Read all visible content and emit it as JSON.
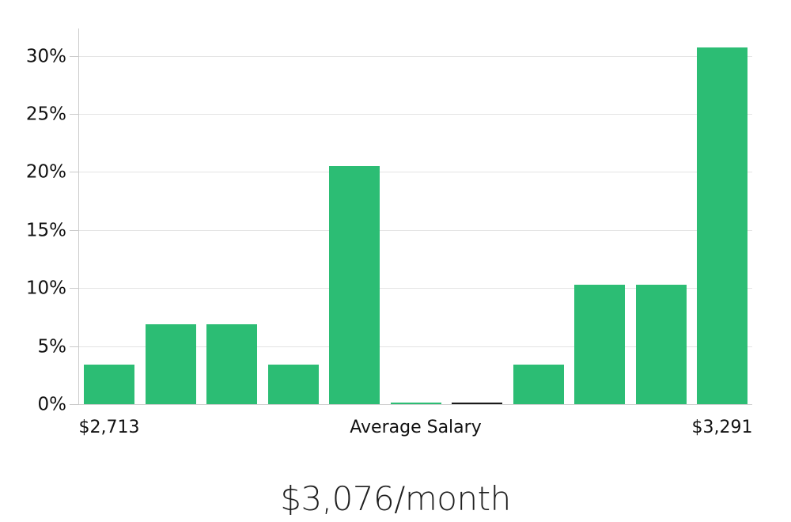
{
  "chart_data": {
    "type": "bar",
    "title": "$3,076/month",
    "xlabel": "",
    "ylabel": "",
    "ylim": [
      0,
      32.4
    ],
    "grid": true,
    "y_ticks": [
      {
        "value": 0,
        "label": "0%"
      },
      {
        "value": 5,
        "label": "5%"
      },
      {
        "value": 10,
        "label": "10%"
      },
      {
        "value": 15,
        "label": "15%"
      },
      {
        "value": 20,
        "label": "20%"
      },
      {
        "value": 25,
        "label": "25%"
      },
      {
        "value": 30,
        "label": "30%"
      }
    ],
    "bars": [
      {
        "value": 3.4,
        "kind": "bin"
      },
      {
        "value": 6.9,
        "kind": "bin"
      },
      {
        "value": 6.9,
        "kind": "bin"
      },
      {
        "value": 3.4,
        "kind": "bin"
      },
      {
        "value": 20.5,
        "kind": "bin"
      },
      {
        "value": 0.1,
        "kind": "bin"
      },
      {
        "value": 0.1,
        "kind": "average-marker"
      },
      {
        "value": 3.4,
        "kind": "bin"
      },
      {
        "value": 10.3,
        "kind": "bin"
      },
      {
        "value": 10.3,
        "kind": "bin"
      },
      {
        "value": 30.7,
        "kind": "bin"
      }
    ],
    "x_annotations": [
      {
        "text": "$2,713",
        "bar_index": 0
      },
      {
        "text": "Average Salary",
        "bar_index": 5
      },
      {
        "text": "$3,291",
        "bar_index": 10
      }
    ],
    "colors": {
      "bar": "#2cbd74",
      "average_marker": "#1a1a1a",
      "grid": "#e3e3e3",
      "baseline": "#cfcfcf",
      "axis": "#cccccc",
      "text": "#111111"
    }
  }
}
